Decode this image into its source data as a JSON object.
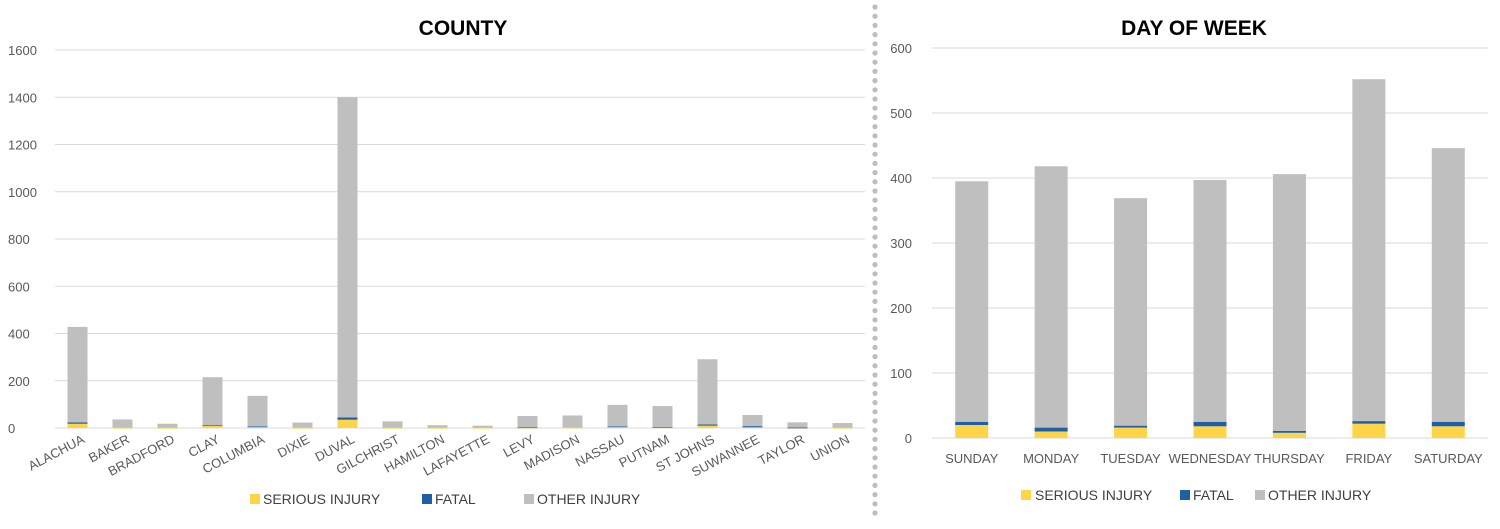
{
  "colors": {
    "serious": "#FFD447",
    "fatal": "#1F5FA6",
    "other": "#BFBFBF",
    "grid": "#D9D9D9",
    "separator": "#BDBDBD"
  },
  "chart_data": [
    {
      "type": "bar",
      "stacked": true,
      "title": "COUNTY",
      "ylim": [
        0,
        1600
      ],
      "yticks": [
        0,
        200,
        400,
        600,
        800,
        1000,
        1200,
        1400,
        1600
      ],
      "grid": true,
      "legend_position": "bottom",
      "categories": [
        "ALACHUA",
        "BAKER",
        "BRADFORD",
        "CLAY",
        "COLUMBIA",
        "DIXIE",
        "DUVAL",
        "GILCHRIST",
        "HAMILTON",
        "LAFAYETTE",
        "LEVY",
        "MADISON",
        "NASSAU",
        "PUTNAM",
        "ST JOHNS",
        "SUWANNEE",
        "TAYLOR",
        "UNION"
      ],
      "series": [
        {
          "name": "SERIOUS INJURY",
          "values": [
            18,
            1,
            1,
            10,
            5,
            1,
            35,
            1,
            1,
            1,
            2,
            2,
            5,
            3,
            10,
            3,
            1,
            1
          ]
        },
        {
          "name": "FATAL",
          "values": [
            6,
            0,
            0,
            2,
            2,
            0,
            10,
            0,
            0,
            0,
            1,
            0,
            2,
            2,
            5,
            5,
            1,
            0
          ]
        },
        {
          "name": "OTHER INJURY",
          "values": [
            404,
            35,
            17,
            203,
            129,
            22,
            1355,
            27,
            11,
            9,
            48,
            51,
            91,
            88,
            276,
            47,
            22,
            20
          ]
        }
      ]
    },
    {
      "type": "bar",
      "stacked": true,
      "title": "DAY OF WEEK",
      "ylim": [
        0,
        600
      ],
      "yticks": [
        0,
        100,
        200,
        300,
        400,
        500,
        600
      ],
      "grid": true,
      "legend_position": "bottom",
      "categories": [
        "SUNDAY",
        "MONDAY",
        "TUESDAY",
        "WEDNESDAY",
        "THURSDAY",
        "FRIDAY",
        "SATURDAY"
      ],
      "series": [
        {
          "name": "SERIOUS INJURY",
          "values": [
            20,
            10,
            16,
            18,
            8,
            22,
            18
          ]
        },
        {
          "name": "FATAL",
          "values": [
            5,
            6,
            3,
            7,
            3,
            4,
            7
          ]
        },
        {
          "name": "OTHER INJURY",
          "values": [
            370,
            402,
            350,
            372,
            395,
            526,
            421
          ]
        }
      ]
    }
  ]
}
